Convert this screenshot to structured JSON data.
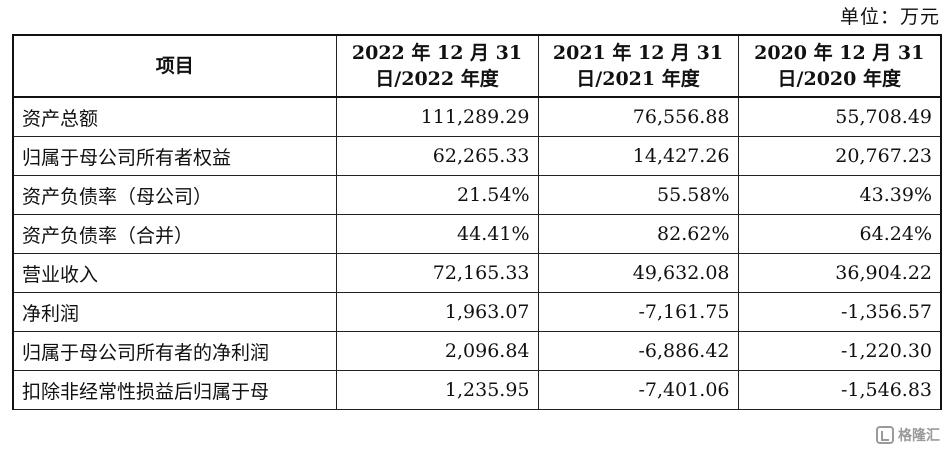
{
  "unit_label": "单位：万元",
  "table": {
    "headers": [
      {
        "line1": "项目",
        "line2": ""
      },
      {
        "line1": "2022 年 12 月 31",
        "line2": "日/2022 年度"
      },
      {
        "line1": "2021 年 12 月 31",
        "line2": "日/2021 年度"
      },
      {
        "line1": "2020 年 12 月 31",
        "line2": "日/2020 年度"
      }
    ],
    "rows": [
      {
        "label": "资产总额",
        "v2022": "111,289.29",
        "v2021": "76,556.88",
        "v2020": "55,708.49"
      },
      {
        "label": "归属于母公司所有者权益",
        "v2022": "62,265.33",
        "v2021": "14,427.26",
        "v2020": "20,767.23"
      },
      {
        "label": "资产负债率（母公司）",
        "v2022": "21.54%",
        "v2021": "55.58%",
        "v2020": "43.39%"
      },
      {
        "label": "资产负债率（合并）",
        "v2022": "44.41%",
        "v2021": "82.62%",
        "v2020": "64.24%"
      },
      {
        "label": "营业收入",
        "v2022": "72,165.33",
        "v2021": "49,632.08",
        "v2020": "36,904.22"
      },
      {
        "label": "净利润",
        "v2022": "1,963.07",
        "v2021": "-7,161.75",
        "v2020": "-1,356.57"
      },
      {
        "label": "归属于母公司所有者的净利润",
        "v2022": "2,096.84",
        "v2021": "-6,886.42",
        "v2020": "-1,220.30"
      },
      {
        "label": "扣除非经常性损益后归属于母",
        "v2022": "1,235.95",
        "v2021": "-7,401.06",
        "v2020": "-1,546.83"
      }
    ]
  },
  "watermark": {
    "icon": "watermark-logo-icon",
    "text": "格隆汇"
  }
}
